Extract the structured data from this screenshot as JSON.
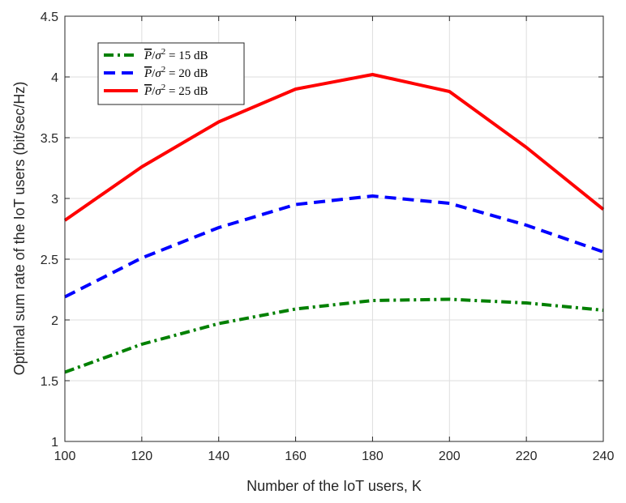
{
  "chart_data": {
    "type": "line",
    "xlabel": "Number of the IoT users, K",
    "ylabel": "Optimal sum rate of the IoT users (bit/sec/Hz)",
    "xlim": [
      100,
      240
    ],
    "ylim": [
      1,
      4.5
    ],
    "x_ticks": [
      "100",
      "120",
      "140",
      "160",
      "180",
      "200",
      "220",
      "240"
    ],
    "y_ticks": [
      "1",
      "1.5",
      "2",
      "2.5",
      "3",
      "3.5",
      "4",
      "4.5"
    ],
    "grid": true,
    "legend_position": "top-left",
    "x": [
      100,
      120,
      140,
      160,
      180,
      200,
      220,
      240
    ],
    "series": [
      {
        "name": "P̄/σ² = 15 dB",
        "legend_value": "15",
        "values": [
          1.57,
          1.8,
          1.97,
          2.09,
          2.16,
          2.17,
          2.14,
          2.08
        ],
        "color": "#008000",
        "style": "dash-dot"
      },
      {
        "name": "P̄/σ² = 20 dB",
        "legend_value": "20",
        "values": [
          2.19,
          2.51,
          2.76,
          2.95,
          3.02,
          2.96,
          2.78,
          2.56
        ],
        "color": "#0000ff",
        "style": "dashed"
      },
      {
        "name": "P̄/σ² = 25 dB",
        "legend_value": "25",
        "values": [
          2.82,
          3.26,
          3.63,
          3.9,
          4.02,
          3.88,
          3.42,
          2.91
        ],
        "color": "#ff0000",
        "style": "solid"
      }
    ]
  }
}
